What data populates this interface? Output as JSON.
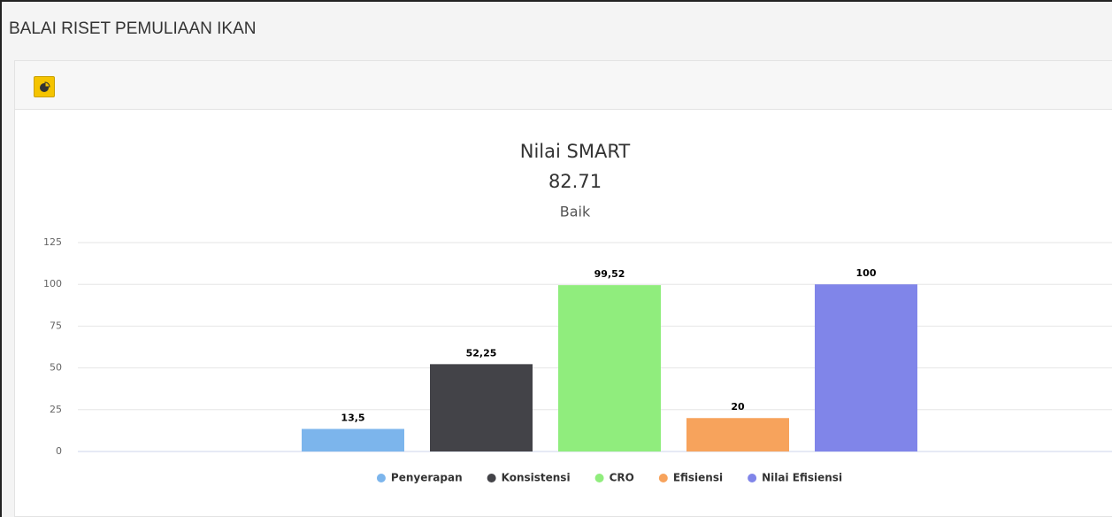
{
  "header": {
    "title": "BALAI RISET PEMULIAAN IKAN"
  },
  "chart_data": {
    "type": "bar",
    "title": "Nilai SMART",
    "title_value": "82.71",
    "subtitle": "Baik",
    "series": [
      {
        "name": "Penyerapan",
        "color": "#7cb5ec",
        "values": [
          13.5
        ],
        "value_labels": [
          "13,5"
        ]
      },
      {
        "name": "Konsistensi",
        "color": "#434348",
        "values": [
          52.25
        ],
        "value_labels": [
          "52,25"
        ]
      },
      {
        "name": "CRO",
        "color": "#90ed7d",
        "values": [
          99.52
        ],
        "value_labels": [
          "99,52"
        ]
      },
      {
        "name": "Efisiensi",
        "color": "#f7a35c",
        "values": [
          20
        ]
      },
      {
        "name": "Nilai Efisiensi",
        "color": "#8085e9",
        "values": [
          100
        ]
      }
    ],
    "ylim": [
      0,
      125
    ],
    "yticks": [
      0,
      25,
      50,
      75,
      100,
      125
    ],
    "grid": true,
    "legend": "bottom"
  }
}
